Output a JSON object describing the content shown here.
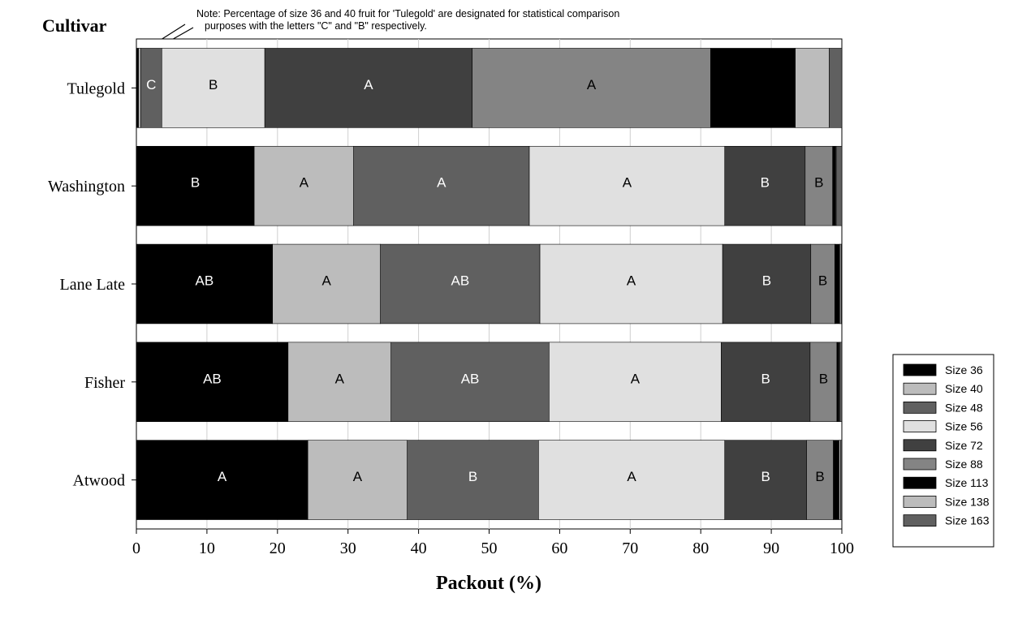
{
  "chart_data": {
    "type": "bar",
    "orientation": "horizontal",
    "stacked": true,
    "title_left": "Cultivar",
    "note_lines": [
      "Note: Percentage of size 36 and 40 fruit for 'Tulegold' are designated for statistical comparison",
      "purposes with the letters \"C\" and \"B\" respectively."
    ],
    "xlabel": "Packout (%)",
    "xlim": [
      0,
      100
    ],
    "xticks": [
      "0",
      "10",
      "20",
      "30",
      "40",
      "50",
      "60",
      "70",
      "80",
      "90",
      "100"
    ],
    "categories": [
      "Tulegold",
      "Washington",
      "Lane Late",
      "Fisher",
      "Atwood"
    ],
    "legend_position": "right",
    "series": [
      {
        "name": "Size 36",
        "color": "#000000",
        "label_color": "#ffffff",
        "values": [
          0.3,
          16.7,
          19.3,
          21.5,
          24.3
        ],
        "labels": [
          "",
          "B",
          "AB",
          "AB",
          "A"
        ]
      },
      {
        "name": "Size 40",
        "color": "#bcbcbc",
        "label_color": "#000000",
        "values": [
          0.3,
          14.1,
          15.3,
          14.6,
          14.1
        ],
        "labels": [
          "",
          "A",
          "A",
          "A",
          "A"
        ]
      },
      {
        "name": "Size 48",
        "color": "#606060",
        "label_color": "#ffffff",
        "values": [
          3.0,
          24.9,
          22.6,
          22.4,
          18.6
        ],
        "labels": [
          "C",
          "A",
          "AB",
          "AB",
          "B"
        ]
      },
      {
        "name": "Size 56",
        "color": "#e0e0e0",
        "label_color": "#000000",
        "values": [
          14.6,
          27.7,
          25.9,
          24.4,
          26.4
        ],
        "labels": [
          "B",
          "A",
          "A",
          "A",
          "A"
        ]
      },
      {
        "name": "Size 72",
        "color": "#404040",
        "label_color": "#ffffff",
        "values": [
          29.4,
          11.4,
          12.5,
          12.6,
          11.6
        ],
        "labels": [
          "A",
          "B",
          "B",
          "B",
          "B"
        ]
      },
      {
        "name": "Size 88",
        "color": "#848484",
        "label_color": "#000000",
        "values": [
          33.8,
          3.9,
          3.4,
          3.8,
          3.8
        ],
        "labels": [
          "A",
          "B",
          "B",
          "B",
          "B"
        ]
      },
      {
        "name": "Size 113",
        "color": "#000000",
        "label_color": "#ffffff",
        "values": [
          12.0,
          0.4,
          0.7,
          0.3,
          0.8
        ],
        "labels": [
          "",
          "",
          "",
          "",
          ""
        ]
      },
      {
        "name": "Size 138",
        "color": "#bcbcbc",
        "label_color": "#000000",
        "values": [
          4.8,
          0.1,
          0.2,
          0.1,
          0.2
        ],
        "labels": [
          "",
          "",
          "",
          "",
          ""
        ]
      },
      {
        "name": "Size 163",
        "color": "#606060",
        "label_color": "#ffffff",
        "values": [
          1.8,
          0.8,
          0.1,
          0.3,
          0.2
        ],
        "labels": [
          "",
          "",
          "",
          "",
          ""
        ]
      }
    ]
  }
}
